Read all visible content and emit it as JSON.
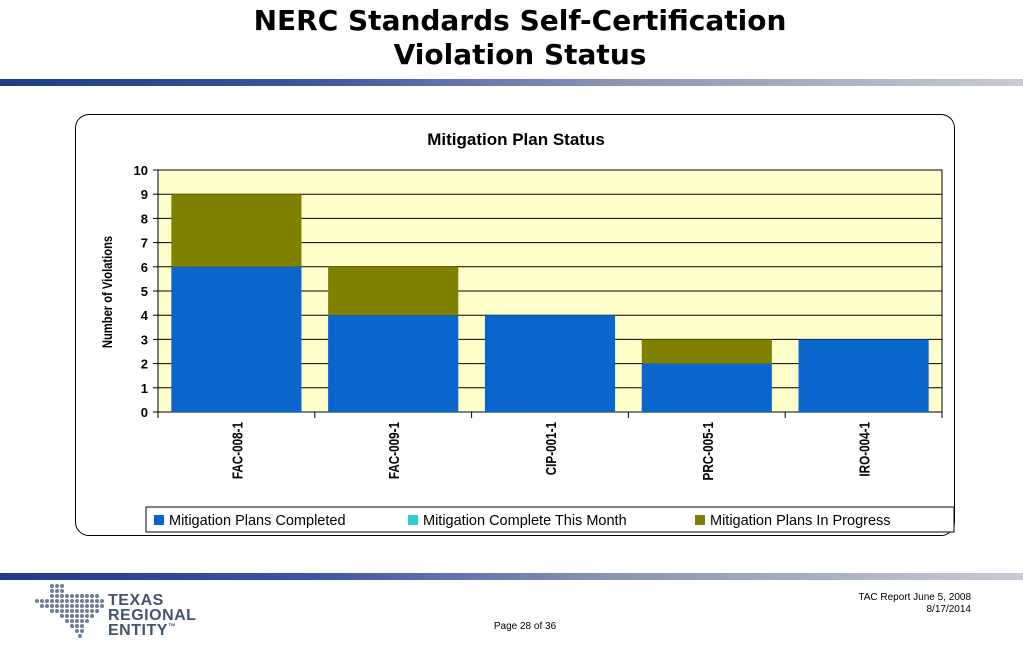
{
  "page": {
    "title_line1": "NERC Standards Self-Certification",
    "title_line2": "Violation Status",
    "footer_report": "TAC Report June 5, 2008",
    "footer_date": "8/17/2014",
    "page_number": "Page 28 of 36",
    "logo_line1": "TEXAS",
    "logo_line2": "REGIONAL",
    "logo_line3": "ENTITY",
    "logo_tm": "™"
  },
  "colors": {
    "rule": "#1f3c88",
    "plot_bg": "#ffffcc",
    "completed": "#0a66cc",
    "complete_this_month": "#33cccc",
    "in_progress": "#808000"
  },
  "chart_data": {
    "type": "bar",
    "stacked": true,
    "title": "Mitigation Plan Status",
    "xlabel": "",
    "ylabel": "Number of Violations",
    "ylim": [
      0,
      10
    ],
    "yticks": [
      0,
      1,
      2,
      3,
      4,
      5,
      6,
      7,
      8,
      9,
      10
    ],
    "grid": true,
    "legend_position": "bottom",
    "categories": [
      "FAC-008-1",
      "FAC-009-1",
      "CIP-001-1",
      "PRC-005-1",
      "IRO-004-1"
    ],
    "series": [
      {
        "name": "Mitigation Plans Completed",
        "color": "#0a66cc",
        "values": [
          6,
          4,
          4,
          2,
          3
        ]
      },
      {
        "name": "Mitigation Complete This Month",
        "color": "#33cccc",
        "values": [
          0,
          0,
          0,
          0,
          0
        ]
      },
      {
        "name": "Mitigation Plans In Progress",
        "color": "#808000",
        "values": [
          3,
          2,
          0,
          1,
          0
        ]
      }
    ]
  }
}
